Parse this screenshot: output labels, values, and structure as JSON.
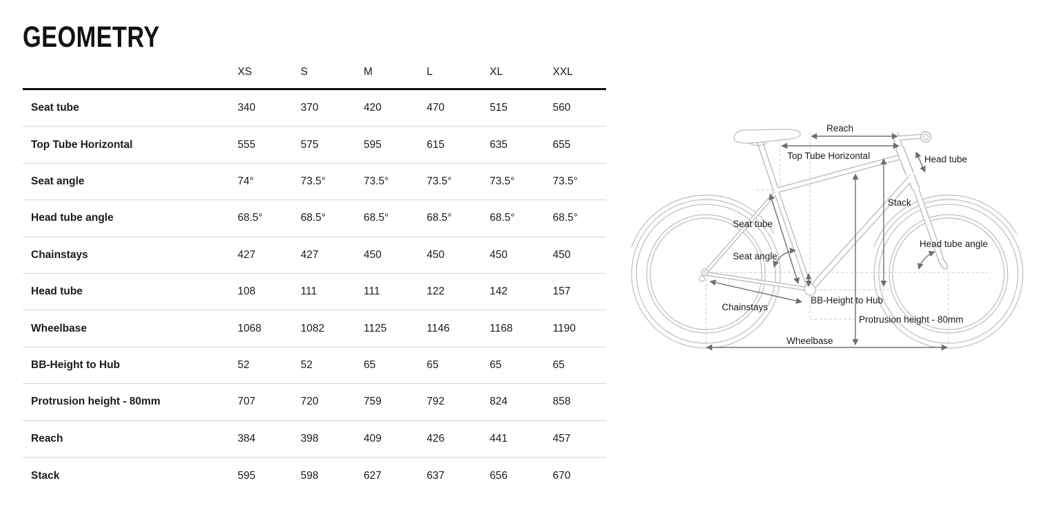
{
  "title": "GEOMETRY",
  "table": {
    "size_headers": [
      "XS",
      "S",
      "M",
      "L",
      "XL",
      "XXL"
    ],
    "rows": [
      {
        "label": "Seat tube",
        "values": [
          "340",
          "370",
          "420",
          "470",
          "515",
          "560"
        ]
      },
      {
        "label": "Top Tube Horizontal",
        "values": [
          "555",
          "575",
          "595",
          "615",
          "635",
          "655"
        ]
      },
      {
        "label": "Seat angle",
        "values": [
          "74°",
          "73.5°",
          "73.5°",
          "73.5°",
          "73.5°",
          "73.5°"
        ]
      },
      {
        "label": "Head tube angle",
        "values": [
          "68.5°",
          "68.5°",
          "68.5°",
          "68.5°",
          "68.5°",
          "68.5°"
        ]
      },
      {
        "label": "Chainstays",
        "values": [
          "427",
          "427",
          "450",
          "450",
          "450",
          "450"
        ]
      },
      {
        "label": "Head tube",
        "values": [
          "108",
          "111",
          "111",
          "122",
          "142",
          "157"
        ]
      },
      {
        "label": "Wheelbase",
        "values": [
          "1068",
          "1082",
          "1125",
          "1146",
          "1168",
          "1190"
        ]
      },
      {
        "label": "BB-Height to Hub",
        "values": [
          "52",
          "52",
          "65",
          "65",
          "65",
          "65"
        ]
      },
      {
        "label": "Protrusion height - 80mm",
        "values": [
          "707",
          "720",
          "759",
          "792",
          "824",
          "858"
        ]
      },
      {
        "label": "Reach",
        "values": [
          "384",
          "398",
          "409",
          "426",
          "441",
          "457"
        ]
      },
      {
        "label": "Stack",
        "values": [
          "595",
          "598",
          "627",
          "637",
          "656",
          "670"
        ]
      }
    ]
  },
  "diagram": {
    "labels": {
      "reach": "Reach",
      "top_tube_horizontal": "Top Tube Horizontal",
      "head_tube": "Head tube",
      "stack": "Stack",
      "seat_tube": "Seat tube",
      "seat_angle": "Seat angle",
      "head_tube_angle": "Head tube angle",
      "chainstays": "Chainstays",
      "bb_height_to_hub": "BB-Height to Hub",
      "protrusion_height": "Protrusion height - 80mm",
      "wheelbase": "Wheelbase"
    }
  },
  "colors": {
    "text": "#1a1a1a",
    "heavy_rule": "#0d0d0d",
    "light_rule": "#d4d4d4",
    "bike_line": "#b8b8b8",
    "dimension_line": "#6e6e6e",
    "dashed_line": "#c8c8c8"
  }
}
